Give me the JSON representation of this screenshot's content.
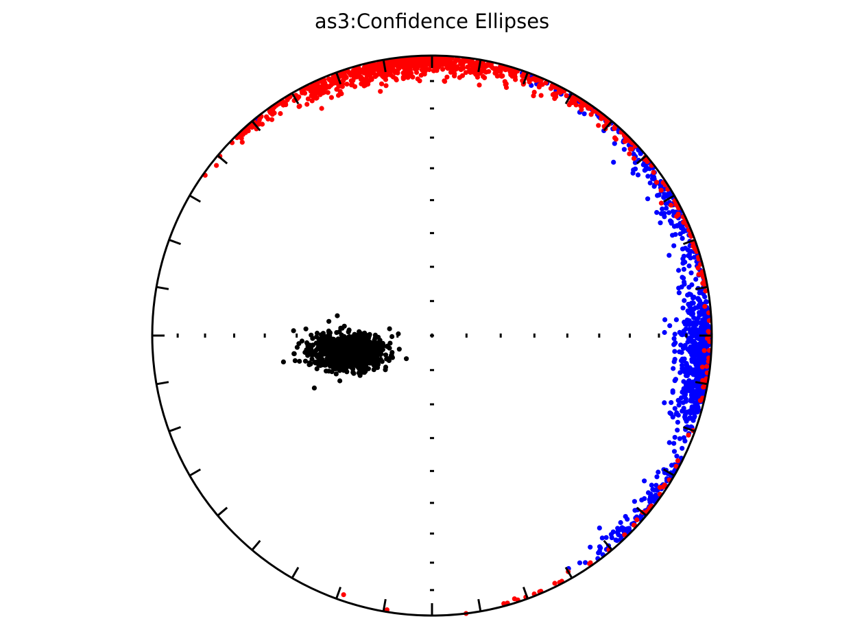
{
  "chart_data": {
    "type": "scatter",
    "projection": "equal-area stereonet",
    "title": "as3:Confidence Ellipses",
    "xlabel": "",
    "ylabel": "",
    "grid": false,
    "legend": "none",
    "ticks": {
      "rim_every_deg": 10,
      "axis_every_deg": 10
    },
    "series": [
      {
        "color": "#000000",
        "cluster": {
          "mean_trend_deg": 260,
          "mean_plunge_deg": 63,
          "count": 900
        },
        "values": [
          {
            "trend": 258,
            "plunge": 60
          },
          {
            "trend": 262,
            "plunge": 61
          },
          {
            "trend": 255,
            "plunge": 56
          },
          {
            "trend": 266,
            "plunge": 63
          },
          {
            "trend": 251,
            "plunge": 58
          },
          {
            "trend": 270,
            "plunge": 60
          },
          {
            "trend": 246,
            "plunge": 52
          },
          {
            "trend": 272,
            "plunge": 49
          },
          {
            "trend": 265,
            "plunge": 50
          },
          {
            "trend": 256,
            "plunge": 66
          },
          {
            "trend": 249,
            "plunge": 66
          },
          {
            "trend": 246,
            "plunge": 72
          },
          {
            "trend": 241,
            "plunge": 66
          },
          {
            "trend": 259,
            "plunge": 54
          },
          {
            "trend": 262,
            "plunge": 68
          }
        ]
      },
      {
        "color": "#0000ff",
        "cluster": {
          "mean_trend_deg": 95,
          "mean_plunge_deg": 5,
          "count": 950
        },
        "values": [
          {
            "trend": 92,
            "plunge": 3
          },
          {
            "trend": 96,
            "plunge": 5
          },
          {
            "trend": 100,
            "plunge": 4
          },
          {
            "trend": 88,
            "plunge": 7
          },
          {
            "trend": 84,
            "plunge": 6
          },
          {
            "trend": 104,
            "plunge": 9
          },
          {
            "trend": 110,
            "plunge": 4
          },
          {
            "trend": 79,
            "plunge": 10
          },
          {
            "trend": 72,
            "plunge": 3
          },
          {
            "trend": 118,
            "plunge": 2
          },
          {
            "trend": 62,
            "plunge": 8
          },
          {
            "trend": 127,
            "plunge": 3
          },
          {
            "trend": 138,
            "plunge": 2
          },
          {
            "trend": 40,
            "plunge": 5
          },
          {
            "trend": 14,
            "plunge": 2
          },
          {
            "trend": 321,
            "plunge": 1
          }
        ]
      },
      {
        "color": "#ff0000",
        "cluster": {
          "mean_trend_deg": 355,
          "mean_plunge_deg": 5,
          "count": 950
        },
        "values": [
          {
            "trend": 355,
            "plunge": 3
          },
          {
            "trend": 350,
            "plunge": 5
          },
          {
            "trend": 345,
            "plunge": 7
          },
          {
            "trend": 340,
            "plunge": 4
          },
          {
            "trend": 5,
            "plunge": 4
          },
          {
            "trend": 10,
            "plunge": 7
          },
          {
            "trend": 20,
            "plunge": 5
          },
          {
            "trend": 330,
            "plunge": 6
          },
          {
            "trend": 320,
            "plunge": 2
          },
          {
            "trend": 40,
            "plunge": 4
          },
          {
            "trend": 60,
            "plunge": 6
          },
          {
            "trend": 100,
            "plunge": 1
          },
          {
            "trend": 130,
            "plunge": 2
          },
          {
            "trend": 150,
            "plunge": 3
          },
          {
            "trend": 165,
            "plunge": 1
          },
          {
            "trend": 173,
            "plunge": 0
          }
        ]
      }
    ]
  }
}
